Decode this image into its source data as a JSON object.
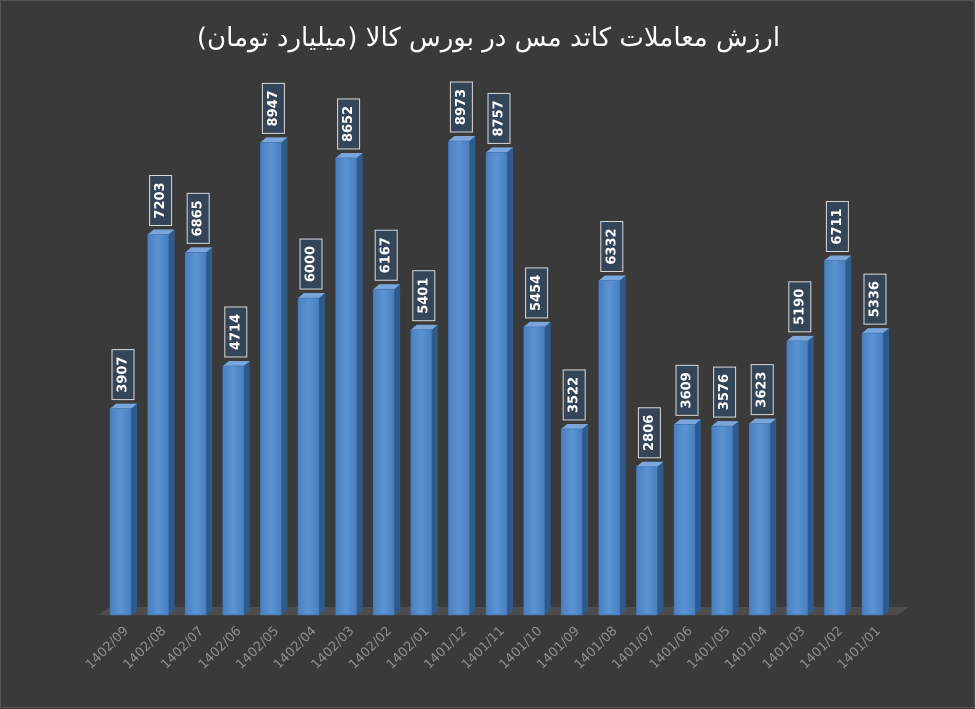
{
  "chart_data": {
    "type": "bar",
    "title": "ارزش معاملات کاتد مس در بورس کالا (میلیارد تومان)",
    "xlabel": "",
    "ylabel": "",
    "ylim": [
      0,
      10000
    ],
    "grid": false,
    "legend": "none",
    "bar_color": "#4f86c6",
    "background": "#3a3a3a",
    "categories": [
      "1402/09",
      "1402/08",
      "1402/07",
      "1402/06",
      "1402/05",
      "1402/04",
      "1402/03",
      "1402/02",
      "1402/01",
      "1401/12",
      "1401/11",
      "1401/10",
      "1401/09",
      "1401/08",
      "1401/07",
      "1401/06",
      "1401/05",
      "1401/04",
      "1401/03",
      "1401/02",
      "1401/01"
    ],
    "values": [
      3907,
      7203,
      6865,
      4714,
      8947,
      6000,
      8652,
      6167,
      5401,
      8973,
      8757,
      5454,
      3522,
      6332,
      2806,
      3609,
      3576,
      3623,
      5190,
      6711,
      5336
    ]
  }
}
